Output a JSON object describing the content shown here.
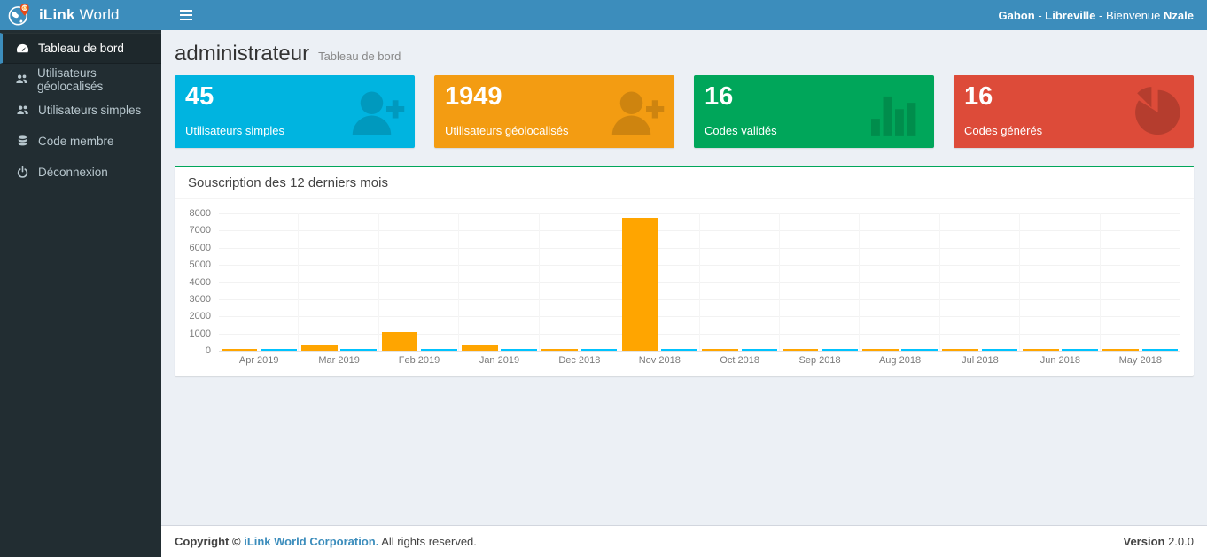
{
  "brand": {
    "bold": "iLink",
    "regular": "World"
  },
  "navbar": {
    "country": "Gabon",
    "separator": "-",
    "city": "Libreville",
    "welcome": "Bienvenue",
    "username": "Nzale"
  },
  "sidebar": {
    "items": [
      {
        "label": "Tableau de bord",
        "icon": "dashboard-icon",
        "active": true
      },
      {
        "label": "Utilisateurs géolocalisés",
        "icon": "users-icon",
        "active": false
      },
      {
        "label": "Utilisateurs simples",
        "icon": "users-icon",
        "active": false
      },
      {
        "label": "Code membre",
        "icon": "database-icon",
        "active": false
      },
      {
        "label": "Déconnexion",
        "icon": "power-icon",
        "active": false
      }
    ]
  },
  "header": {
    "title": "administrateur",
    "subtitle": "Tableau de bord"
  },
  "stat_cards": [
    {
      "value": "45",
      "label": "Utilisateurs simples",
      "color": "#00b4e0",
      "icon": "user-plus-icon"
    },
    {
      "value": "1949",
      "label": "Utilisateurs géolocalisés",
      "color": "#f39c12",
      "icon": "user-plus-icon"
    },
    {
      "value": "16",
      "label": "Codes validés",
      "color": "#00a65a",
      "icon": "bar-chart-icon"
    },
    {
      "value": "16",
      "label": "Codes générés",
      "color": "#dd4b39",
      "icon": "pie-chart-icon"
    }
  ],
  "panel": {
    "title": "Souscription des 12 derniers mois",
    "accent_color": "#00a65a"
  },
  "chart_data": {
    "type": "bar",
    "title": "Souscription des 12 derniers mois",
    "categories": [
      "Apr 2019",
      "Mar 2019",
      "Feb 2019",
      "Jan 2019",
      "Dec 2018",
      "Nov 2018",
      "Oct 2018",
      "Sep 2018",
      "Aug 2018",
      "Jul 2018",
      "Jun 2018",
      "May 2018"
    ],
    "series": [
      {
        "name": "orange-series",
        "color": "#ffa500",
        "values": [
          60,
          300,
          1100,
          300,
          80,
          7750,
          60,
          60,
          60,
          60,
          60,
          60
        ]
      },
      {
        "name": "blue-series",
        "color": "#00c3ff",
        "values": [
          60,
          60,
          60,
          60,
          60,
          60,
          60,
          60,
          60,
          60,
          60,
          60
        ]
      }
    ],
    "xlabel": "",
    "ylabel": "",
    "ylim": [
      0,
      8000
    ],
    "yticks": [
      0,
      1000,
      2000,
      3000,
      4000,
      5000,
      6000,
      7000,
      8000
    ],
    "grid": true,
    "legend": false
  },
  "footer": {
    "copyright_prefix": "Copyright ©",
    "company": "iLink World Corporation.",
    "rights": "All rights reserved.",
    "version_label": "Version",
    "version": "2.0.0"
  },
  "colors": {
    "topbar": "#3c8dbc",
    "sidebar_bg": "#222d32",
    "sidebar_active_bg": "#1e282c",
    "body_bg": "#ecf0f5",
    "panel_accent": "#00a65a"
  }
}
